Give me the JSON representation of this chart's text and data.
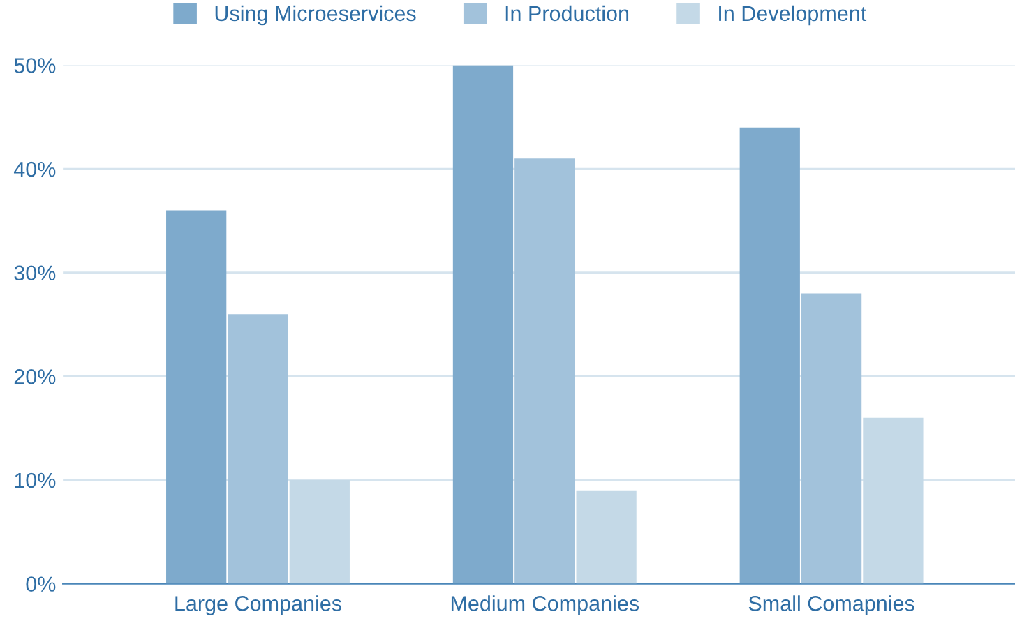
{
  "chart_data": {
    "type": "bar",
    "categories": [
      "Large Companies",
      "Medium Companies",
      "Small Comapnies"
    ],
    "series": [
      {
        "name": "Using Microeservices",
        "color": "#7eaacc",
        "values": [
          36,
          50,
          44
        ]
      },
      {
        "name": "In Production",
        "color": "#a2c2db",
        "values": [
          26,
          41,
          28
        ]
      },
      {
        "name": "In Development",
        "color": "#c4d9e7",
        "values": [
          10,
          9,
          16
        ]
      }
    ],
    "ylim": [
      0,
      50
    ],
    "yticks": [
      {
        "value": 0,
        "label": "0%"
      },
      {
        "value": 10,
        "label": "10%"
      },
      {
        "value": 20,
        "label": "20%"
      },
      {
        "value": 30,
        "label": "30%"
      },
      {
        "value": 40,
        "label": "40%"
      },
      {
        "value": 50,
        "label": "50%"
      }
    ],
    "grid": "y",
    "legend": "top"
  }
}
